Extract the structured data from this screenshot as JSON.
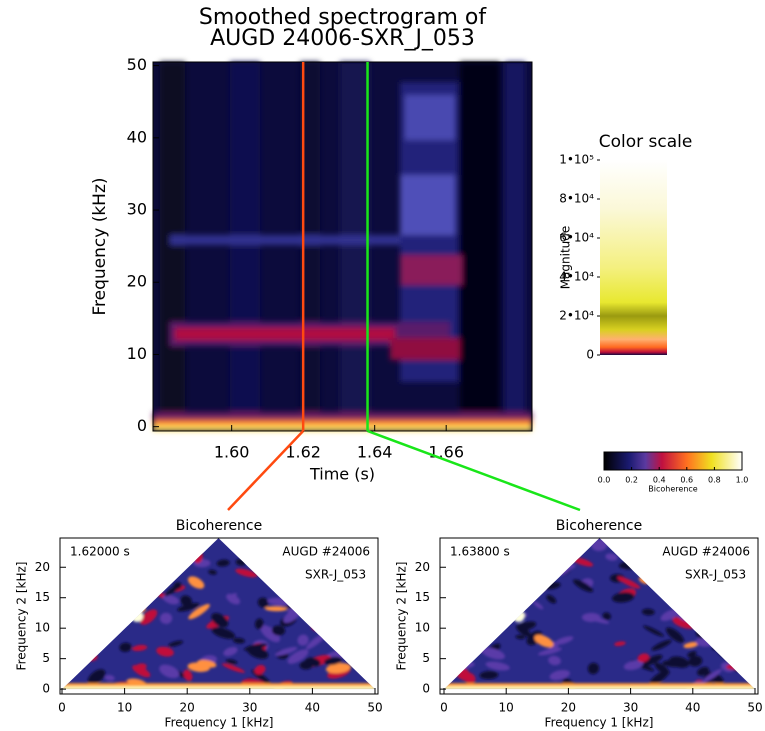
{
  "chart_data": [
    {
      "type": "heatmap",
      "title": [
        "Smoothed spectrogram of",
        "AUGD 24006-SXR_J_053"
      ],
      "x_label": "Time (s)",
      "y_label": "Frequency (kHz)",
      "xlim": [
        1.578,
        1.684
      ],
      "ylim": [
        -0.6,
        50.5
      ],
      "xticks": [
        {
          "value": 1.6,
          "label": "1.60"
        },
        {
          "value": 1.62,
          "label": "1.62"
        },
        {
          "value": 1.64,
          "label": "1.64"
        },
        {
          "value": 1.66,
          "label": "1.66"
        }
      ],
      "yticks": [
        0,
        10,
        20,
        30,
        40,
        50
      ],
      "markers": [
        {
          "x": 1.62,
          "color": "#ff4a10"
        },
        {
          "x": 1.638,
          "color": "#19e619"
        }
      ]
    },
    {
      "type": "colorbar",
      "orientation": "vertical",
      "title": "Color scale",
      "y_label": "Magnitude",
      "ylim": [
        0,
        100000
      ],
      "yticks": [
        0,
        {
          "value": 20000,
          "label": "2•10⁴"
        },
        {
          "value": 40000,
          "label": "4•10⁴"
        },
        {
          "value": 60000,
          "label": "6•10⁴"
        },
        {
          "value": 80000,
          "label": "8•10⁴"
        },
        {
          "value": 100000,
          "label": "1•10⁵"
        }
      ]
    },
    {
      "type": "colorbar",
      "orientation": "horizontal",
      "x_label": "Bicoherence",
      "xlim": [
        0,
        1
      ],
      "xticks": [
        {
          "value": 0,
          "label": "0.0"
        },
        {
          "value": 0.2,
          "label": "0.2"
        },
        {
          "value": 0.4,
          "label": "0.4"
        },
        {
          "value": 0.6,
          "label": "0.6"
        },
        {
          "value": 0.8,
          "label": "0.8"
        },
        {
          "value": 1,
          "label": "1.0"
        }
      ]
    },
    {
      "type": "heatmap",
      "title": "Bicoherence",
      "x_label": "Frequency 1 [kHz]",
      "y_label": "Frequency 2 [kHz]",
      "xlim": [
        0,
        50
      ],
      "ylim": [
        -0.8,
        24.8
      ],
      "xticks": [
        0,
        10,
        20,
        30,
        40,
        50
      ],
      "yticks": [
        0,
        5,
        10,
        15,
        20
      ],
      "annotations": [
        "1.62000 s",
        "AUGD #24006",
        "SXR-J_053"
      ]
    },
    {
      "type": "heatmap",
      "title": "Bicoherence",
      "x_label": "Frequency 1 [kHz]",
      "y_label": "Frequency 2 [kHz]",
      "xlim": [
        0,
        50
      ],
      "ylim": [
        -0.8,
        24.8
      ],
      "xticks": [
        0,
        10,
        20,
        30,
        40,
        50
      ],
      "yticks": [
        0,
        5,
        10,
        15,
        20
      ],
      "annotations": [
        "1.63800 s",
        "AUGD #24006",
        "SXR-J_053"
      ]
    }
  ]
}
